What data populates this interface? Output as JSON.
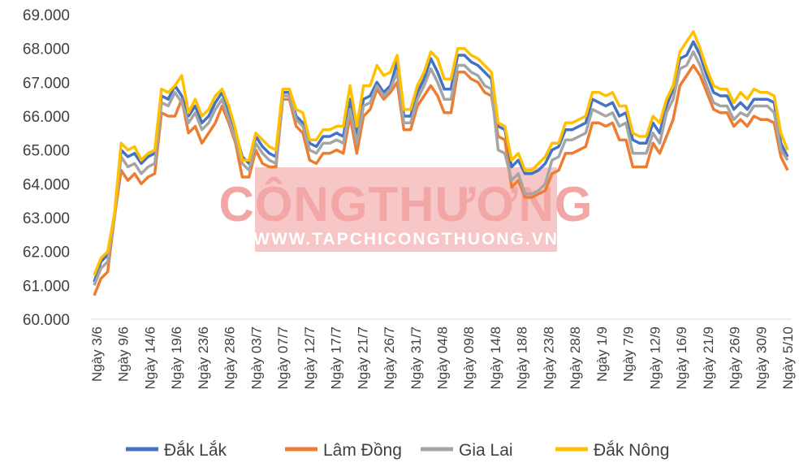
{
  "watermark": {
    "title": "CÔNGTHƯƠNG",
    "url": "WWW.TAPCHICONGTHUONG.VN",
    "box_color": "#f4b3b3",
    "text_color": "#e87878"
  },
  "chart_data": {
    "type": "line",
    "ylim": [
      60000,
      69000
    ],
    "ytick_step": 1000,
    "ytick_labels": [
      "60.000",
      "61.000",
      "62.000",
      "63.000",
      "64.000",
      "65.000",
      "66.000",
      "67.000",
      "68.000",
      "69.000"
    ],
    "x_tick_labels": [
      "Ngày 3/6",
      "Ngày 9/6",
      "Ngày 14/6",
      "Ngày 19/6",
      "Ngày 23/6",
      "Ngày 28/6",
      "Ngày 03/7",
      "Ngày 07/7",
      "Ngày 12/7",
      "Ngày 17/7",
      "Ngày 21/7",
      "Ngày 26/7",
      "Ngày 31/7",
      "Ngày 04/8",
      "Ngày 09/8",
      "Ngày 14/8",
      "Ngày 18/8",
      "Ngày 23/8",
      "Ngày 28/8",
      "Ngày 1/9",
      "Ngày 7/9",
      "Ngày 12/9",
      "Ngày 16/9",
      "Ngày 21/9",
      "Ngày 26/9",
      "Ngày 30/9",
      "Ngày 5/10"
    ],
    "legend_position": "bottom",
    "grid": false,
    "series": [
      {
        "name": "Đắk Lắk",
        "color": "#4472c4",
        "values": [
          61100,
          61700,
          61900,
          63000,
          65000,
          64800,
          64900,
          64600,
          64800,
          64900,
          66600,
          66500,
          66900,
          66600,
          66000,
          66300,
          65800,
          66000,
          66400,
          66700,
          66100,
          65500,
          64800,
          64600,
          65400,
          65100,
          64900,
          64800,
          66700,
          66700,
          66000,
          65800,
          65200,
          65100,
          65400,
          65400,
          65500,
          65400,
          66500,
          65400,
          66500,
          66600,
          67000,
          66700,
          66900,
          67600,
          66000,
          66000,
          66700,
          67100,
          67700,
          67300,
          66800,
          66800,
          67800,
          67800,
          67600,
          67500,
          67300,
          67100,
          65700,
          65600,
          64500,
          64700,
          64300,
          64300,
          64400,
          64600,
          65000,
          65100,
          65600,
          65600,
          65700,
          65800,
          66500,
          66400,
          66300,
          66400,
          66000,
          66100,
          65300,
          65200,
          65200,
          65800,
          65500,
          66300,
          66800,
          67700,
          67800,
          68200,
          67800,
          67200,
          66700,
          66600,
          66600,
          66200,
          66400,
          66200,
          66500,
          66500,
          66500,
          66400,
          65200,
          64800
        ]
      },
      {
        "name": "Lâm Đồng",
        "color": "#ed7d31",
        "values": [
          60700,
          61200,
          61400,
          63000,
          64400,
          64100,
          64300,
          64000,
          64200,
          64300,
          66100,
          66000,
          66000,
          66500,
          65500,
          65700,
          65200,
          65500,
          65800,
          66300,
          65800,
          65200,
          64200,
          64200,
          65000,
          64600,
          64500,
          64500,
          66500,
          66500,
          65700,
          65500,
          64700,
          64600,
          64900,
          64900,
          65000,
          64900,
          66000,
          64900,
          66000,
          66200,
          66800,
          66500,
          66700,
          67000,
          65600,
          65600,
          66300,
          66600,
          66900,
          66600,
          66100,
          66100,
          67300,
          67300,
          67100,
          67000,
          66700,
          66600,
          65400,
          65300,
          63900,
          64100,
          63600,
          63600,
          63700,
          63800,
          64300,
          64400,
          64900,
          64900,
          65000,
          65100,
          65800,
          65800,
          65700,
          65800,
          65300,
          65300,
          64500,
          64500,
          64500,
          65200,
          64900,
          65400,
          65900,
          66900,
          67200,
          67500,
          67200,
          66700,
          66200,
          66100,
          66100,
          65700,
          65900,
          65700,
          66000,
          65900,
          65900,
          65800,
          64800,
          64400
        ]
      },
      {
        "name": "Gia Lai",
        "color": "#a5a5a5",
        "values": [
          61000,
          61500,
          61700,
          63000,
          64800,
          64500,
          64600,
          64300,
          64500,
          64600,
          66400,
          66300,
          66700,
          66400,
          65800,
          66100,
          65600,
          65800,
          66200,
          66500,
          65900,
          65300,
          64600,
          64400,
          65200,
          64900,
          64700,
          64600,
          66600,
          66600,
          65900,
          65700,
          65000,
          64900,
          65200,
          65200,
          65300,
          65200,
          66200,
          65200,
          66300,
          66400,
          66900,
          66600,
          66800,
          67300,
          65800,
          65800,
          66500,
          66900,
          67400,
          67000,
          66500,
          66500,
          67500,
          67500,
          67300,
          67200,
          66900,
          66800,
          65000,
          64900,
          64100,
          64300,
          63700,
          63700,
          63800,
          64000,
          64700,
          64800,
          65300,
          65300,
          65400,
          65500,
          66200,
          66100,
          66000,
          66100,
          65700,
          65800,
          64900,
          64900,
          64900,
          65500,
          65200,
          66100,
          66500,
          67400,
          67500,
          67900,
          67500,
          66900,
          66400,
          66300,
          66300,
          65900,
          66100,
          66000,
          66300,
          66300,
          66300,
          66100,
          65000,
          64700
        ]
      },
      {
        "name": "Đắk Nông",
        "color": "#ffc000",
        "values": [
          61300,
          61800,
          62000,
          63100,
          65200,
          65000,
          65100,
          64700,
          64900,
          65000,
          66800,
          66700,
          66900,
          67200,
          66100,
          66500,
          66000,
          66200,
          66600,
          66800,
          66300,
          65600,
          64700,
          64700,
          65500,
          65300,
          65100,
          65000,
          66800,
          66800,
          66200,
          66100,
          65300,
          65300,
          65600,
          65600,
          65700,
          65700,
          66900,
          65700,
          66900,
          66900,
          67500,
          67200,
          67300,
          67800,
          66200,
          66200,
          66900,
          67300,
          67900,
          67700,
          67100,
          67100,
          68000,
          68000,
          67800,
          67700,
          67500,
          67300,
          65800,
          65700,
          64700,
          64900,
          64400,
          64400,
          64600,
          64800,
          65200,
          65200,
          65800,
          65800,
          65900,
          66000,
          66700,
          66700,
          66600,
          66700,
          66300,
          66300,
          65500,
          65400,
          65400,
          66000,
          65800,
          66500,
          66900,
          67900,
          68200,
          68500,
          68000,
          67400,
          66900,
          66800,
          66800,
          66400,
          66700,
          66500,
          66800,
          66700,
          66700,
          66600,
          65500,
          65000
        ]
      }
    ]
  }
}
